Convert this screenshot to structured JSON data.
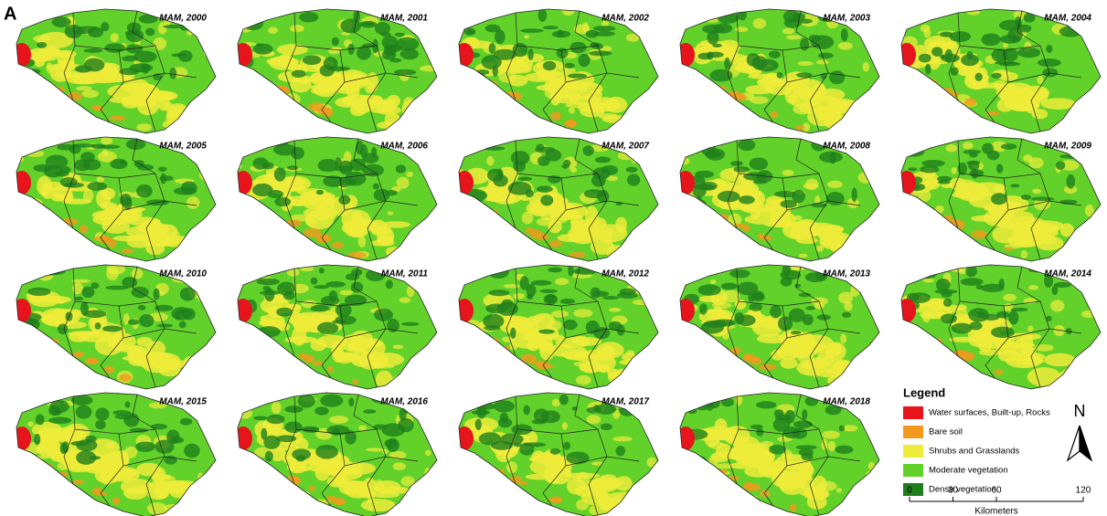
{
  "panel_label": "A",
  "maps": [
    {
      "label": "MAM, 2000"
    },
    {
      "label": "MAM, 2001"
    },
    {
      "label": "MAM, 2002"
    },
    {
      "label": "MAM, 2003"
    },
    {
      "label": "MAM, 2004"
    },
    {
      "label": "MAM, 2005"
    },
    {
      "label": "MAM, 2006"
    },
    {
      "label": "MAM, 2007"
    },
    {
      "label": "MAM, 2008"
    },
    {
      "label": "MAM, 2009"
    },
    {
      "label": "MAM, 2010"
    },
    {
      "label": "MAM, 2011"
    },
    {
      "label": "MAM, 2012"
    },
    {
      "label": "MAM, 2013"
    },
    {
      "label": "MAM, 2014"
    },
    {
      "label": "MAM, 2015"
    },
    {
      "label": "MAM, 2016"
    },
    {
      "label": "MAM, 2017"
    },
    {
      "label": "MAM, 2018"
    }
  ],
  "legend": {
    "title": "Legend",
    "items": [
      {
        "label": "Water surfaces, Built-up, Rocks",
        "color": "#e8141c"
      },
      {
        "label": "Bare soil",
        "color": "#f39a1e"
      },
      {
        "label": "Shrubs and Grasslands",
        "color": "#eeec3a"
      },
      {
        "label": "Moderate vegetation",
        "color": "#62d22a"
      },
      {
        "label": "Dense vegetation",
        "color": "#1f7f1c"
      }
    ]
  },
  "north": "N",
  "scale_bar": {
    "ticks": [
      0,
      30,
      60,
      120
    ],
    "unit": "Kilometers"
  }
}
